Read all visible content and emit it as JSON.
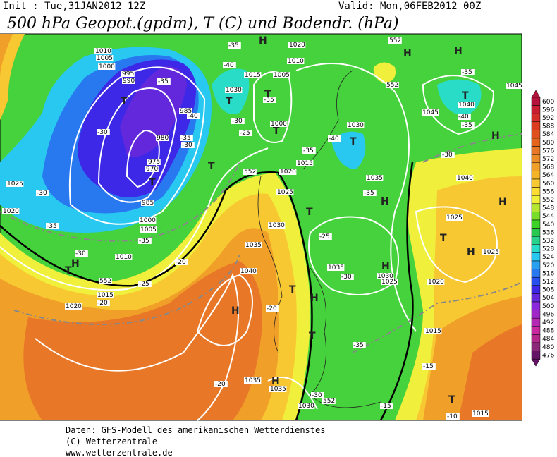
{
  "header": {
    "init": "Init : Tue,31JAN2012 12Z",
    "valid": "Valid: Mon,06FEB2012 00Z",
    "title": "500 hPa Geopot.(gpdm), T (C) und Bodendr. (hPa)"
  },
  "colorbar": {
    "ticks": [
      600,
      596,
      592,
      588,
      584,
      580,
      576,
      572,
      568,
      564,
      560,
      556,
      552,
      548,
      544,
      540,
      536,
      532,
      528,
      524,
      520,
      516,
      512,
      508,
      504,
      500,
      496,
      492,
      488,
      484,
      480,
      476
    ],
    "colors": [
      "#b4143c",
      "#c81e32",
      "#d22d28",
      "#dc3c1e",
      "#e0501e",
      "#e4641e",
      "#e87828",
      "#ec8c28",
      "#f0a028",
      "#f4b428",
      "#f8c832",
      "#fadc32",
      "#f0f03c",
      "#b4e632",
      "#78dc28",
      "#3cd228",
      "#28c850",
      "#28d28c",
      "#28dcc8",
      "#28c8f0",
      "#28a0f0",
      "#2878f0",
      "#2850f0",
      "#3c28e6",
      "#6428dc",
      "#8c28dc",
      "#a028c8",
      "#b428b4",
      "#c828a0",
      "#b4288c",
      "#8c2878",
      "#641464"
    ]
  },
  "map": {
    "labels": [
      "H",
      "H",
      "H",
      "T",
      "T",
      "T",
      "T",
      "T",
      "T",
      "T",
      "T",
      "T",
      "H",
      "T",
      "H",
      "H",
      "T",
      "H",
      "T",
      "H",
      "H",
      "T",
      "H",
      "H",
      "T",
      "H",
      "1010",
      "1005",
      "1000",
      "995",
      "990",
      "985",
      "980",
      "975",
      "970",
      "985",
      "1000",
      "1005",
      "1010",
      "1015",
      "1020",
      "1020",
      "1010",
      "1015",
      "1005",
      "1030",
      "1000",
      "1030",
      "1020",
      "1015",
      "1025",
      "1030",
      "1035",
      "1040",
      "1035",
      "1030",
      "1025",
      "1035",
      "1040",
      "1025",
      "1025",
      "1020",
      "1045",
      "1040",
      "1045",
      "1015",
      "1035",
      "1035",
      "1030",
      "1015",
      "1025",
      "1020",
      "-35",
      "-40",
      "-35",
      "-35",
      "-40",
      "-30",
      "-35",
      "-30",
      "-25",
      "-30",
      "-35",
      "-40",
      "-35",
      "-35",
      "-40",
      "-35",
      "-30",
      "-30",
      "-35",
      "-35",
      "-30",
      "-25",
      "-20",
      "-20",
      "-20",
      "-30",
      "-35",
      "-20",
      "-30",
      "-15",
      "-15",
      "-10",
      "-25",
      "552",
      "552",
      "552",
      "552",
      "552"
    ]
  },
  "footer": {
    "lines": [
      "Daten: GFS-Modell des amerikanischen Wetterdienstes",
      "(C) Wetterzentrale",
      "www.wetterzentrale.de"
    ]
  }
}
